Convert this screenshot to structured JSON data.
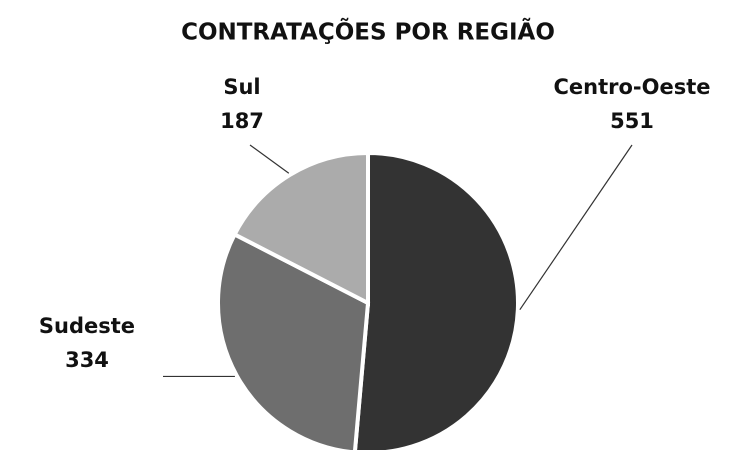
{
  "chart_data": {
    "type": "pie",
    "title": "CONTRATAÇÕES POR REGIÃO",
    "categories": [
      "Centro-Oeste",
      "Sudeste",
      "Sul"
    ],
    "values": [
      551,
      334,
      187
    ],
    "colors": [
      "#333333",
      "#6e6e6e",
      "#ababab"
    ]
  }
}
